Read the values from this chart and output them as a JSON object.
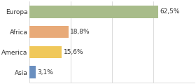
{
  "categories": [
    "Europa",
    "Africa",
    "America",
    "Asia"
  ],
  "values": [
    62.5,
    18.8,
    15.6,
    3.1
  ],
  "labels": [
    "62,5%",
    "18,8%",
    "15,6%",
    "3,1%"
  ],
  "bar_colors": [
    "#a8bc8a",
    "#e8aa78",
    "#f0c85a",
    "#6a8fbf"
  ],
  "background_color": "#ffffff",
  "xlim": [
    0,
    78
  ],
  "label_fontsize": 6.5,
  "tick_fontsize": 6.5,
  "bar_height": 0.62
}
